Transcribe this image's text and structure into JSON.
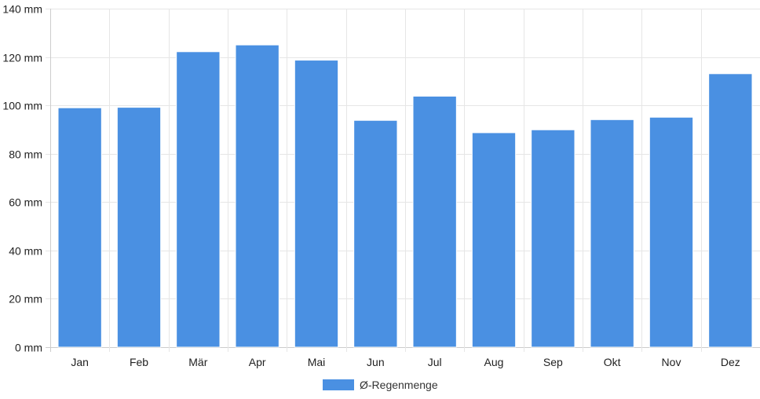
{
  "chart_data": {
    "type": "bar",
    "categories": [
      "Jan",
      "Feb",
      "Mär",
      "Apr",
      "Mai",
      "Jun",
      "Jul",
      "Aug",
      "Sep",
      "Okt",
      "Nov",
      "Dez"
    ],
    "series": [
      {
        "name": "Ø-Regenmenge",
        "color": "#4a90e2",
        "values": [
          99,
          99.2,
          122.2,
          125,
          118.7,
          93.8,
          103.8,
          88.7,
          89.9,
          94.1,
          95.1,
          113.1
        ]
      }
    ],
    "ylim": [
      0,
      140
    ],
    "yticks": [
      0,
      20,
      40,
      60,
      80,
      100,
      120,
      140
    ],
    "y_unit_suffix": " mm",
    "grid": true,
    "legend_position": "bottom-center",
    "colors": {
      "bar": "#4a90e2",
      "grid": "#e6e6e6",
      "axis": "#cccccc",
      "text": "#222222"
    }
  }
}
